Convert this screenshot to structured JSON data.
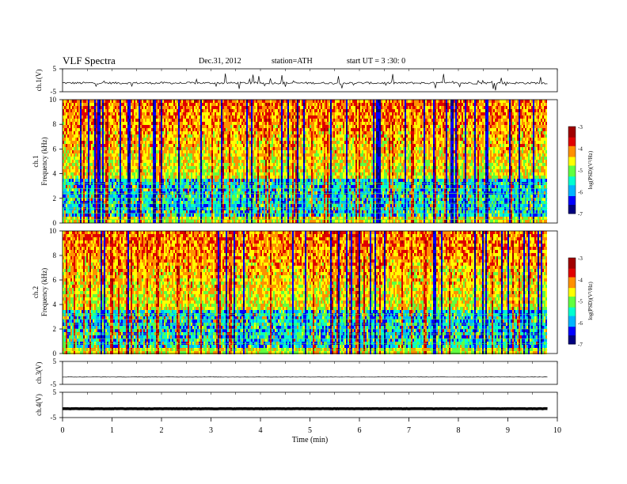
{
  "header": {
    "title": "VLF  Spectra",
    "date": "Dec.31, 2012",
    "station": "station=ATH",
    "start": "start  UT  =   3  :30: 0"
  },
  "colors": {
    "spectrum_scale": [
      "#000080",
      "#0000ff",
      "#00b4ff",
      "#00ffd0",
      "#60ff40",
      "#ffff00",
      "#ff9000",
      "#e00000",
      "#a00000",
      "#ffffff"
    ]
  },
  "chart_data": [
    {
      "type": "line",
      "panel": "ch1-waveform",
      "ylabel": "ch.1(V)",
      "ylim": [
        -5,
        5
      ],
      "yticks": [
        "5",
        "-5"
      ],
      "x_range_min": [
        0,
        9.8
      ],
      "baseline_v": -1.2,
      "spike_range_v": [
        -4.5,
        3
      ]
    },
    {
      "type": "heatmap",
      "panel": "ch1-spectrogram",
      "ylabel": "ch.1\nFrequency  (kHz)",
      "ylim": [
        0,
        10
      ],
      "yticks": [
        "0",
        "2",
        "4",
        "6",
        "8",
        "10"
      ],
      "colorbar_label": "log(PSD)(V²/Hz)",
      "colorbar_range": [
        -7,
        -3
      ],
      "colorbar_ticks": [
        "-3",
        "-4",
        "-5",
        "-6",
        "-7"
      ]
    },
    {
      "type": "heatmap",
      "panel": "ch2-spectrogram",
      "ylabel": "ch.2\nFrequency  (kHz)",
      "ylim": [
        0,
        10
      ],
      "yticks": [
        "0",
        "2",
        "4",
        "6",
        "8",
        "10"
      ],
      "colorbar_label": "log(PSD)(V²/Hz)",
      "colorbar_range": [
        -7,
        -3
      ],
      "colorbar_ticks": [
        "-3",
        "-4",
        "-5",
        "-6",
        "-7"
      ]
    },
    {
      "type": "line",
      "panel": "ch3-waveform",
      "ylabel": "ch.3(V)",
      "ylim": [
        -5,
        5
      ],
      "yticks": [
        "5",
        "-5"
      ],
      "x_range_min": [
        0,
        9.8
      ],
      "baseline_v": -1.8
    },
    {
      "type": "line",
      "panel": "ch4-waveform",
      "ylabel": "ch.4(V)",
      "ylim": [
        -5,
        5
      ],
      "yticks": [
        "5",
        "-5"
      ],
      "x_range_min": [
        0,
        9.8
      ],
      "baseline_v": -1.5
    }
  ],
  "xaxis": {
    "label": "Time  (min)",
    "range": [
      0,
      10
    ],
    "ticks": [
      "0",
      "1",
      "2",
      "3",
      "4",
      "5",
      "6",
      "7",
      "8",
      "9",
      "10"
    ]
  }
}
